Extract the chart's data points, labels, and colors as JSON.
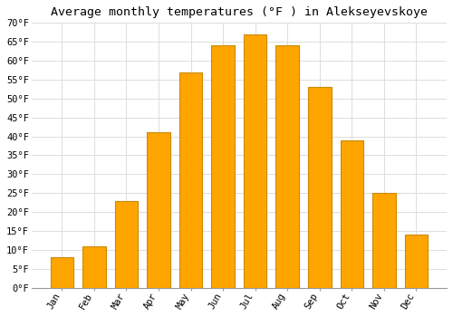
{
  "title": "Average monthly temperatures (°F ) in Alekseyevskoye",
  "months": [
    "Jan",
    "Feb",
    "Mar",
    "Apr",
    "May",
    "Jun",
    "Jul",
    "Aug",
    "Sep",
    "Oct",
    "Nov",
    "Dec"
  ],
  "values": [
    8,
    11,
    23,
    41,
    57,
    64,
    67,
    64,
    53,
    39,
    25,
    14
  ],
  "bar_color_main": "#FFA500",
  "bar_color_edge": "#CC8800",
  "background_color": "#FFFFFF",
  "plot_bg_color": "#FFFFFF",
  "grid_color": "#DDDDDD",
  "ylim": [
    0,
    70
  ],
  "yticks": [
    0,
    5,
    10,
    15,
    20,
    25,
    30,
    35,
    40,
    45,
    50,
    55,
    60,
    65,
    70
  ],
  "title_fontsize": 9.5,
  "tick_fontsize": 7.5,
  "font_family": "monospace"
}
